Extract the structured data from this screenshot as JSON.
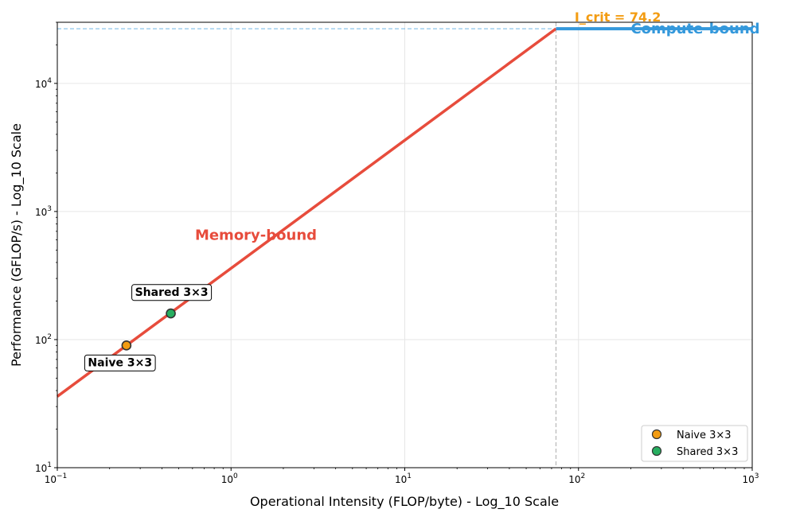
{
  "chart_data": {
    "type": "line",
    "title": "",
    "xlabel": "Operational Intensity (FLOP/byte) - Log_10 Scale",
    "ylabel": "Performance (GFLOP/s) - Log_10 Scale",
    "xscale": "log",
    "yscale": "log",
    "xlim": [
      0.1,
      1000
    ],
    "ylim": [
      10,
      30000
    ],
    "grid": true,
    "x_ticks": [
      {
        "value": 0.1,
        "base": "10",
        "exp": "−1"
      },
      {
        "value": 1,
        "base": "10",
        "exp": "0"
      },
      {
        "value": 10,
        "base": "10",
        "exp": "1"
      },
      {
        "value": 100,
        "base": "10",
        "exp": "2"
      },
      {
        "value": 1000,
        "base": "10",
        "exp": "3"
      }
    ],
    "y_ticks": [
      {
        "value": 10,
        "base": "10",
        "exp": "1"
      },
      {
        "value": 100,
        "base": "10",
        "exp": "2"
      },
      {
        "value": 1000,
        "base": "10",
        "exp": "3"
      },
      {
        "value": 10000,
        "base": "10",
        "exp": "4"
      }
    ],
    "roofline": {
      "memory_bound": {
        "x": [
          0.1,
          74.2
        ],
        "y": [
          36,
          26700
        ],
        "color": "#e74c3c"
      },
      "compute_bound": {
        "x": [
          74.2,
          1000
        ],
        "y": [
          26700,
          26700
        ],
        "color": "#3498db"
      },
      "critical_x": 74.2,
      "peak_y": 26700
    },
    "series": [
      {
        "name": "Naive 3×3",
        "x": [
          0.25
        ],
        "y": [
          90
        ],
        "color": "#f39c12"
      },
      {
        "name": "Shared 3×3",
        "x": [
          0.45
        ],
        "y": [
          160
        ],
        "color": "#27ae60"
      }
    ],
    "annotations": [
      {
        "id": "icrit",
        "text": "I_crit = 74.2",
        "x": 95,
        "y": 30500,
        "color": "#f39c12",
        "size": 16
      },
      {
        "id": "compute",
        "text": "Compute-bound",
        "x": 200,
        "y": 24500,
        "color": "#3498db",
        "size": 18
      },
      {
        "id": "memory",
        "text": "Memory-bound",
        "x": 0.62,
        "y": 600,
        "color": "#e74c3c",
        "size": 18
      }
    ],
    "point_labels": [
      {
        "text": "Naive 3×3",
        "x": 0.15,
        "y": 62
      },
      {
        "text": "Shared 3×3",
        "x": 0.28,
        "y": 220
      }
    ],
    "legend": {
      "position": "lower-right",
      "entries": [
        {
          "label": "Naive 3×3",
          "color": "#f39c12"
        },
        {
          "label": "Shared 3×3",
          "color": "#27ae60"
        }
      ]
    }
  }
}
